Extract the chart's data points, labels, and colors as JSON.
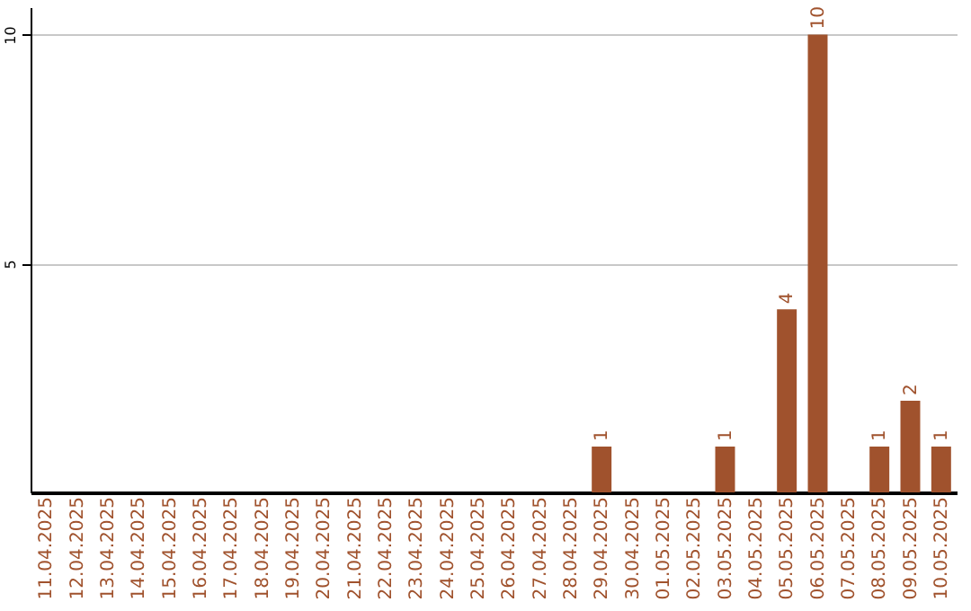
{
  "chart_data": {
    "type": "bar",
    "categories": [
      "11.04.2025",
      "12.04.2025",
      "13.04.2025",
      "14.04.2025",
      "15.04.2025",
      "16.04.2025",
      "17.04.2025",
      "18.04.2025",
      "19.04.2025",
      "20.04.2025",
      "21.04.2025",
      "22.04.2025",
      "23.04.2025",
      "24.04.2025",
      "25.04.2025",
      "26.04.2025",
      "27.04.2025",
      "28.04.2025",
      "29.04.2025",
      "30.04.2025",
      "01.05.2025",
      "02.05.2025",
      "03.05.2025",
      "04.05.2025",
      "05.05.2025",
      "06.05.2025",
      "07.05.2025",
      "08.05.2025",
      "09.05.2025",
      "10.05.2025"
    ],
    "values": [
      0,
      0,
      0,
      0,
      0,
      0,
      0,
      0,
      0,
      0,
      0,
      0,
      0,
      0,
      0,
      0,
      0,
      0,
      1,
      0,
      0,
      0,
      1,
      0,
      4,
      10,
      0,
      1,
      2,
      1
    ],
    "value_labels": [
      null,
      null,
      null,
      null,
      null,
      null,
      null,
      null,
      null,
      null,
      null,
      null,
      null,
      null,
      null,
      null,
      null,
      null,
      "1",
      null,
      null,
      null,
      "1",
      null,
      "4",
      "10",
      null,
      "1",
      "2",
      "1"
    ],
    "color": "#a0522d",
    "ylim": [
      0,
      10.6
    ],
    "yticks": [
      5,
      10
    ],
    "grid": "y"
  }
}
